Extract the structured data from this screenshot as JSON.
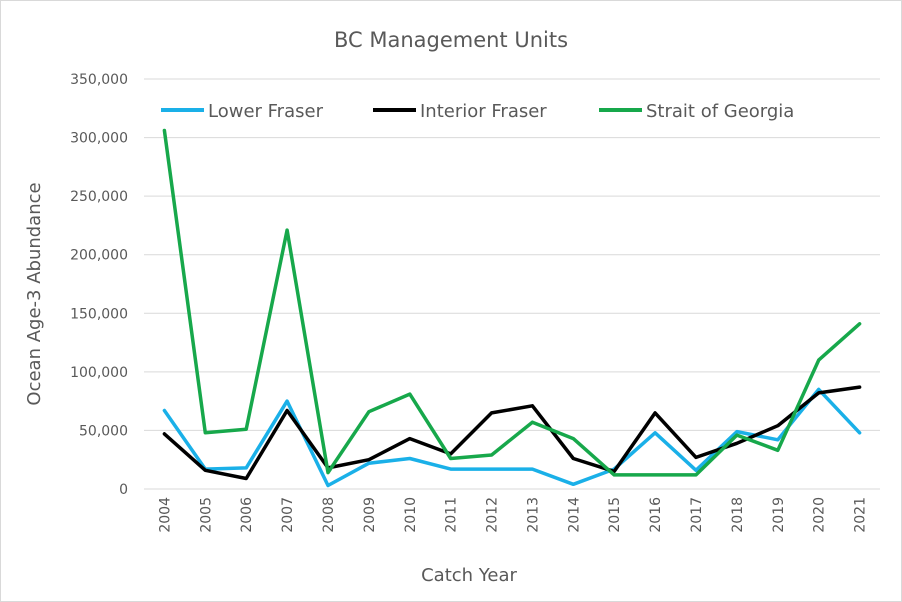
{
  "chart_data": {
    "type": "line",
    "title": "BC Management Units",
    "xlabel": "Catch Year",
    "ylabel": "Ocean Age-3 Abundance",
    "ylim": [
      0,
      350000
    ],
    "yticks": [
      0,
      50000,
      100000,
      150000,
      200000,
      250000,
      300000,
      350000
    ],
    "ytick_labels": [
      "0",
      "50,000",
      "100,000",
      "150,000",
      "200,000",
      "250,000",
      "300,000",
      "350,000"
    ],
    "grid": "horizontal",
    "legend": "top",
    "categories": [
      "2004",
      "2005",
      "2006",
      "2007",
      "2008",
      "2009",
      "2010",
      "2011",
      "2012",
      "2013",
      "2014",
      "2015",
      "2016",
      "2017",
      "2018",
      "2019",
      "2020",
      "2021"
    ],
    "series": [
      {
        "name": "Lower Fraser",
        "color": "#1ab0e8",
        "values": [
          67000,
          17000,
          18000,
          75000,
          3000,
          22000,
          26000,
          17000,
          17000,
          17000,
          4000,
          17000,
          48000,
          16000,
          49000,
          42000,
          85000,
          48000
        ]
      },
      {
        "name": "Interior Fraser",
        "color": "#000000",
        "values": [
          47000,
          16000,
          9000,
          67000,
          18000,
          25000,
          43000,
          30000,
          65000,
          71000,
          26000,
          15000,
          65000,
          27000,
          39000,
          54000,
          82000,
          87000
        ]
      },
      {
        "name": "Strait of Georgia",
        "color": "#17a84b",
        "values": [
          306000,
          48000,
          51000,
          221000,
          14000,
          66000,
          81000,
          26000,
          29000,
          57000,
          43000,
          12000,
          12000,
          12000,
          46000,
          33000,
          110000,
          141000
        ]
      }
    ]
  }
}
